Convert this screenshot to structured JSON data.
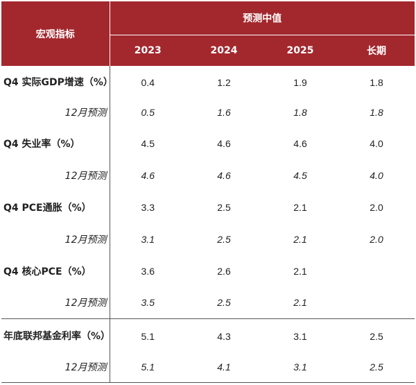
{
  "header": {
    "indicator_label": "宏观指标",
    "group_label": "预测中值",
    "columns": [
      "2023",
      "2024",
      "2025",
      "长期"
    ]
  },
  "rows": [
    {
      "label": "Q4 实际GDP增速（%）",
      "values": [
        "0.4",
        "1.2",
        "1.9",
        "1.8"
      ]
    },
    {
      "label": "12月预测",
      "values": [
        "0.5",
        "1.6",
        "1.8",
        "1.8"
      ]
    },
    {
      "label": "Q4 失业率（%）",
      "values": [
        "4.5",
        "4.6",
        "4.6",
        "4.0"
      ]
    },
    {
      "label": "12月预测",
      "values": [
        "4.6",
        "4.6",
        "4.5",
        "4.0"
      ]
    },
    {
      "label": "Q4 PCE通胀（%）",
      "values": [
        "3.3",
        "2.5",
        "2.1",
        "2.0"
      ]
    },
    {
      "label": "12月预测",
      "values": [
        "3.1",
        "2.5",
        "2.1",
        "2.0"
      ]
    },
    {
      "label": "Q4 核心PCE（%）",
      "values": [
        "3.6",
        "2.6",
        "2.1",
        ""
      ]
    },
    {
      "label": "12月预测",
      "values": [
        "3.5",
        "2.5",
        "2.1",
        ""
      ]
    },
    {
      "label": "年底联邦基金利率（%）",
      "values": [
        "5.1",
        "4.3",
        "3.1",
        "2.5"
      ]
    },
    {
      "label": "12月预测",
      "values": [
        "5.1",
        "4.1",
        "3.1",
        "2.5"
      ]
    }
  ]
}
